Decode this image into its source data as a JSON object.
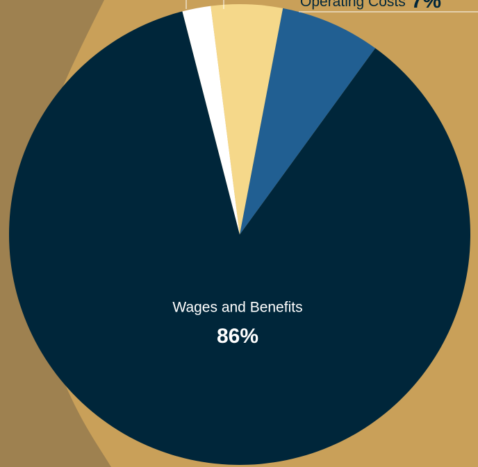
{
  "chart_data": {
    "type": "pie",
    "categories": [
      "Wages and Benefits",
      null,
      null,
      "Operating Costs"
    ],
    "values": [
      86,
      2,
      5,
      7
    ],
    "value_labels": [
      "86%",
      null,
      null,
      "7%"
    ],
    "colors": [
      "#00263a",
      "#ffffff",
      "#f5d88a",
      "#215f92"
    ]
  }
}
